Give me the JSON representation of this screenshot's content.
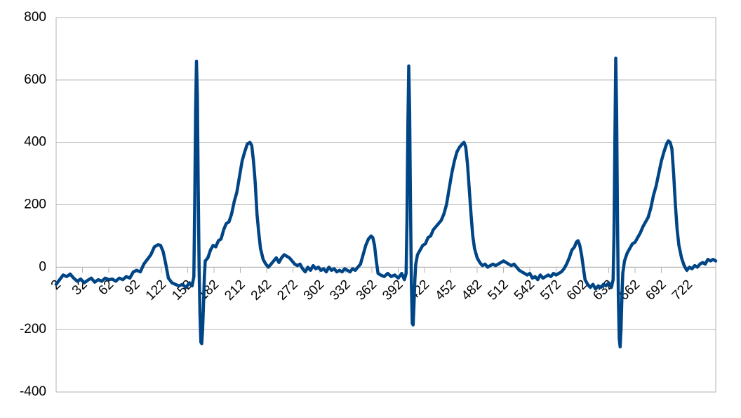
{
  "chart_data": {
    "type": "line",
    "x": [
      2,
      6,
      10,
      14,
      18,
      22,
      26,
      30,
      34,
      38,
      42,
      46,
      50,
      54,
      58,
      62,
      66,
      70,
      74,
      78,
      82,
      86,
      90,
      94,
      98,
      102,
      106,
      110,
      114,
      118,
      121,
      124,
      127,
      130,
      134,
      138,
      142,
      146,
      150,
      154,
      157,
      159,
      160,
      161,
      162,
      163,
      164,
      165,
      166,
      167,
      168,
      169,
      170,
      171,
      172,
      175,
      178,
      181,
      184,
      187,
      190,
      193,
      196,
      199,
      202,
      205,
      208,
      211,
      214,
      217,
      220,
      223,
      225,
      227,
      229,
      231,
      233,
      235,
      238,
      241,
      244,
      247,
      250,
      253,
      256,
      259,
      262,
      265,
      268,
      271,
      274,
      277,
      280,
      283,
      286,
      289,
      292,
      295,
      298,
      301,
      304,
      307,
      310,
      313,
      316,
      319,
      322,
      325,
      328,
      331,
      334,
      337,
      340,
      343,
      346,
      349,
      352,
      355,
      358,
      361,
      363,
      365,
      367,
      369,
      372,
      376,
      380,
      384,
      388,
      392,
      396,
      399,
      401,
      402,
      403,
      404,
      405,
      406,
      407,
      408,
      409,
      410,
      411,
      412,
      414,
      417,
      420,
      423,
      426,
      429,
      432,
      435,
      438,
      441,
      444,
      447,
      450,
      453,
      456,
      459,
      462,
      465,
      467,
      469,
      471,
      473,
      475,
      477,
      479,
      482,
      485,
      488,
      491,
      494,
      497,
      500,
      503,
      506,
      509,
      512,
      515,
      518,
      521,
      524,
      527,
      530,
      533,
      536,
      539,
      542,
      545,
      548,
      551,
      554,
      557,
      560,
      563,
      566,
      569,
      572,
      575,
      578,
      581,
      584,
      587,
      590,
      593,
      595,
      597,
      599,
      601,
      603,
      605,
      608,
      611,
      614,
      617,
      620,
      623,
      626,
      629,
      632,
      635,
      637,
      638,
      639,
      640,
      641,
      642,
      643,
      644,
      645,
      646,
      647,
      648,
      650,
      653,
      656,
      659,
      662,
      665,
      668,
      671,
      674,
      677,
      680,
      683,
      686,
      689,
      692,
      695,
      698,
      700,
      702,
      704,
      706,
      708,
      710,
      712,
      715,
      718,
      721,
      724,
      727,
      730,
      733,
      736,
      739,
      742,
      745,
      748,
      751,
      754
    ],
    "series": [
      {
        "color": "#004586",
        "values": [
          -55,
          -40,
          -25,
          -30,
          -22,
          -35,
          -45,
          -38,
          -50,
          -42,
          -35,
          -48,
          -40,
          -45,
          -35,
          -40,
          -38,
          -45,
          -35,
          -40,
          -30,
          -35,
          -15,
          -10,
          -15,
          10,
          25,
          40,
          65,
          72,
          70,
          50,
          10,
          -35,
          -50,
          -55,
          -60,
          -55,
          -65,
          -50,
          -60,
          -30,
          200,
          500,
          660,
          550,
          250,
          0,
          -150,
          -240,
          -245,
          -200,
          -120,
          -30,
          20,
          30,
          55,
          70,
          65,
          85,
          90,
          120,
          140,
          145,
          170,
          210,
          240,
          290,
          340,
          370,
          395,
          400,
          390,
          340,
          270,
          170,
          110,
          60,
          25,
          10,
          0,
          10,
          20,
          30,
          15,
          30,
          40,
          35,
          30,
          20,
          10,
          5,
          10,
          -5,
          -15,
          0,
          -10,
          5,
          -5,
          0,
          -10,
          -5,
          -15,
          0,
          -10,
          -5,
          -15,
          -10,
          -15,
          -5,
          -10,
          -15,
          -5,
          -10,
          0,
          10,
          40,
          70,
          90,
          100,
          95,
          70,
          20,
          -20,
          -25,
          -30,
          -20,
          -30,
          -25,
          -35,
          -20,
          -40,
          -20,
          150,
          450,
          645,
          500,
          200,
          -50,
          -180,
          -185,
          -120,
          -40,
          10,
          40,
          55,
          70,
          75,
          95,
          100,
          120,
          130,
          140,
          150,
          170,
          200,
          250,
          300,
          340,
          370,
          385,
          395,
          400,
          385,
          330,
          250,
          170,
          100,
          60,
          30,
          15,
          5,
          10,
          0,
          5,
          10,
          5,
          10,
          15,
          20,
          15,
          10,
          5,
          10,
          0,
          -10,
          -15,
          -20,
          -25,
          -20,
          -35,
          -30,
          -40,
          -25,
          -35,
          -30,
          -25,
          -30,
          -20,
          -25,
          -20,
          -15,
          -5,
          10,
          30,
          55,
          65,
          80,
          85,
          70,
          40,
          0,
          -40,
          -55,
          -65,
          -55,
          -70,
          -60,
          -65,
          -55,
          -60,
          -50,
          -65,
          -40,
          100,
          400,
          670,
          500,
          150,
          -100,
          -230,
          -255,
          -200,
          -100,
          -20,
          20,
          45,
          60,
          75,
          80,
          95,
          110,
          130,
          145,
          160,
          190,
          230,
          260,
          300,
          340,
          370,
          395,
          405,
          400,
          380,
          300,
          200,
          120,
          70,
          30,
          5,
          -10,
          0,
          -5,
          5,
          0,
          10,
          15,
          10,
          25,
          20,
          25,
          20
        ]
      }
    ],
    "xlim": [
      2,
      754
    ],
    "xticks": [
      2,
      32,
      62,
      92,
      122,
      152,
      182,
      212,
      242,
      272,
      302,
      332,
      362,
      392,
      422,
      452,
      482,
      512,
      542,
      572,
      602,
      632,
      662,
      692,
      722
    ],
    "ylim": [
      -400,
      800
    ],
    "yticks": [
      -400,
      -200,
      0,
      200,
      400,
      600,
      800
    ],
    "grid": true
  }
}
